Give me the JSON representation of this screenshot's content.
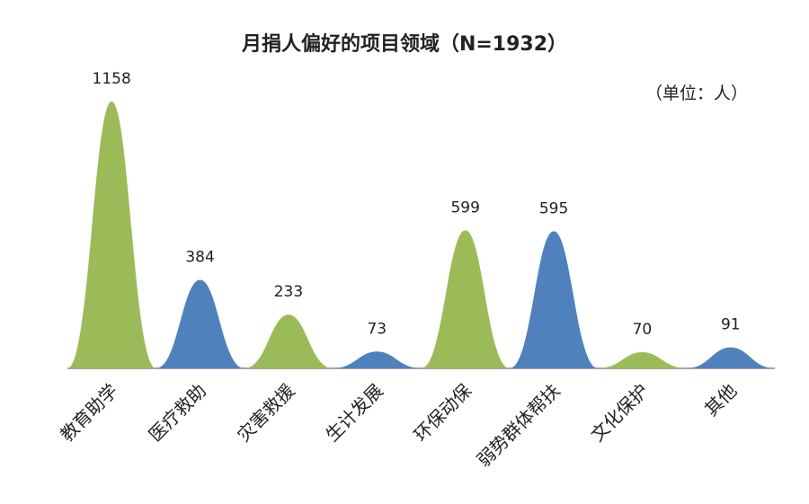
{
  "chart_data": {
    "type": "peak",
    "title": "月捐人偏好的项目领域（N=1932）",
    "unit_note": "（单位：人）",
    "categories": [
      "教育助学",
      "医疗救助",
      "灾害救援",
      "生计发展",
      "环保动保",
      "弱势群体帮扶",
      "文化保护",
      "其他"
    ],
    "values": [
      1158,
      384,
      233,
      73,
      599,
      595,
      70,
      91
    ],
    "colors": [
      "#9bbb59",
      "#4f81bd",
      "#9bbb59",
      "#4f81bd",
      "#9bbb59",
      "#4f81bd",
      "#9bbb59",
      "#4f81bd"
    ]
  }
}
